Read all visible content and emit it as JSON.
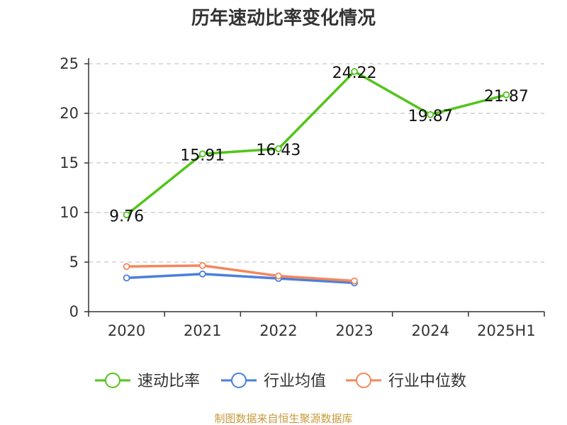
{
  "chart_data": {
    "type": "line",
    "title": "历年速动比率变化情况",
    "categories": [
      "2020",
      "2021",
      "2022",
      "2023",
      "2024",
      "2025H1"
    ],
    "ylim": [
      0,
      25
    ],
    "yticks": [
      "0",
      "5",
      "10",
      "15",
      "20",
      "25"
    ],
    "grid": "horizontal-dashed",
    "legend_position": "bottom",
    "series": [
      {
        "name": "速动比率",
        "color": "#52c41a",
        "values": [
          9.76,
          15.91,
          16.43,
          24.22,
          19.87,
          21.87
        ],
        "labels": [
          "9.76",
          "15.91",
          "16.43",
          "24.22",
          "19.87",
          "21.87"
        ]
      },
      {
        "name": "行业均值",
        "color": "#4a7fdc",
        "values": [
          3.4,
          3.8,
          3.35,
          2.9,
          null,
          null
        ]
      },
      {
        "name": "行业中位数",
        "color": "#f4875c",
        "values": [
          4.55,
          4.65,
          3.6,
          3.1,
          null,
          null
        ]
      }
    ]
  },
  "source_text": "制图数据来自恒生聚源数据库"
}
